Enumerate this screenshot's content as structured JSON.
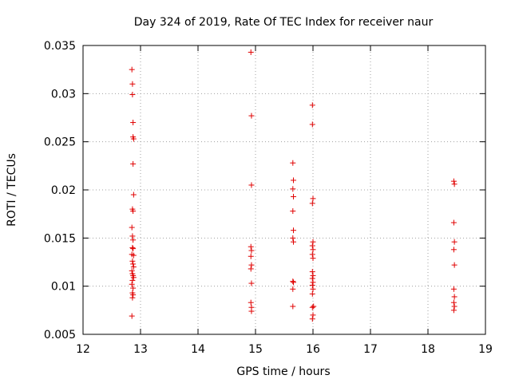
{
  "chart_data": {
    "type": "scatter",
    "title": "Day 324 of 2019, Rate Of TEC Index for receiver naur",
    "xlabel": "GPS time / hours",
    "ylabel": "ROTI / TECUs",
    "xlim": [
      12,
      19
    ],
    "ylim": [
      0.005,
      0.035
    ],
    "xticks": [
      12,
      13,
      14,
      15,
      16,
      17,
      18,
      19
    ],
    "yticks": [
      0.005,
      0.01,
      0.015,
      0.02,
      0.025,
      0.03,
      0.035
    ],
    "xtick_labels": [
      "12",
      "13",
      "14",
      "15",
      "16",
      "17",
      "18",
      "19"
    ],
    "ytick_labels": [
      "0.005",
      "0.01",
      "0.015",
      "0.02",
      "0.025",
      "0.03",
      "0.035"
    ],
    "grid": true,
    "marker": "+",
    "marker_color": "#e00000",
    "series": [
      {
        "name": "ROTI",
        "points": [
          [
            12.85,
            0.0325
          ],
          [
            12.86,
            0.031
          ],
          [
            12.86,
            0.0299
          ],
          [
            12.87,
            0.027
          ],
          [
            12.87,
            0.0255
          ],
          [
            12.88,
            0.0253
          ],
          [
            12.87,
            0.0227
          ],
          [
            12.88,
            0.0195
          ],
          [
            12.86,
            0.018
          ],
          [
            12.87,
            0.0178
          ],
          [
            12.85,
            0.0161
          ],
          [
            12.86,
            0.0152
          ],
          [
            12.87,
            0.0148
          ],
          [
            12.86,
            0.014
          ],
          [
            12.87,
            0.0139
          ],
          [
            12.85,
            0.0133
          ],
          [
            12.88,
            0.0132
          ],
          [
            12.86,
            0.0126
          ],
          [
            12.87,
            0.0123
          ],
          [
            12.88,
            0.012
          ],
          [
            12.85,
            0.0116
          ],
          [
            12.86,
            0.0113
          ],
          [
            12.87,
            0.0111
          ],
          [
            12.88,
            0.0109
          ],
          [
            12.86,
            0.0106
          ],
          [
            12.85,
            0.0102
          ],
          [
            12.87,
            0.0098
          ],
          [
            12.86,
            0.0093
          ],
          [
            12.87,
            0.0091
          ],
          [
            12.86,
            0.0088
          ],
          [
            12.85,
            0.0069
          ],
          [
            14.92,
            0.0343
          ],
          [
            14.93,
            0.0277
          ],
          [
            14.93,
            0.0205
          ],
          [
            14.92,
            0.0141
          ],
          [
            14.93,
            0.0137
          ],
          [
            14.92,
            0.0131
          ],
          [
            14.93,
            0.0122
          ],
          [
            14.92,
            0.0118
          ],
          [
            14.93,
            0.0103
          ],
          [
            14.92,
            0.0083
          ],
          [
            14.93,
            0.0078
          ],
          [
            14.93,
            0.0074
          ],
          [
            15.65,
            0.0228
          ],
          [
            15.66,
            0.021
          ],
          [
            15.65,
            0.0201
          ],
          [
            15.66,
            0.0193
          ],
          [
            15.65,
            0.0178
          ],
          [
            15.66,
            0.0158
          ],
          [
            15.65,
            0.015
          ],
          [
            15.66,
            0.0146
          ],
          [
            15.65,
            0.0105
          ],
          [
            15.66,
            0.0104
          ],
          [
            15.65,
            0.0097
          ],
          [
            15.65,
            0.0079
          ],
          [
            15.99,
            0.0288
          ],
          [
            15.99,
            0.0268
          ],
          [
            16.0,
            0.0191
          ],
          [
            15.99,
            0.0186
          ],
          [
            16.0,
            0.0146
          ],
          [
            15.99,
            0.0142
          ],
          [
            16.0,
            0.0138
          ],
          [
            15.99,
            0.0133
          ],
          [
            16.0,
            0.0129
          ],
          [
            15.99,
            0.0115
          ],
          [
            16.0,
            0.0111
          ],
          [
            15.99,
            0.0108
          ],
          [
            16.0,
            0.0104
          ],
          [
            15.99,
            0.0101
          ],
          [
            16.0,
            0.0097
          ],
          [
            15.99,
            0.0092
          ],
          [
            16.01,
            0.0079
          ],
          [
            15.99,
            0.0078
          ],
          [
            16.0,
            0.007
          ],
          [
            15.99,
            0.0066
          ],
          [
            18.45,
            0.0209
          ],
          [
            18.46,
            0.0206
          ],
          [
            18.45,
            0.0166
          ],
          [
            18.46,
            0.0146
          ],
          [
            18.45,
            0.0138
          ],
          [
            18.46,
            0.0122
          ],
          [
            18.45,
            0.0097
          ],
          [
            18.46,
            0.0089
          ],
          [
            18.45,
            0.0083
          ],
          [
            18.46,
            0.0079
          ],
          [
            18.45,
            0.0075
          ]
        ]
      }
    ]
  }
}
